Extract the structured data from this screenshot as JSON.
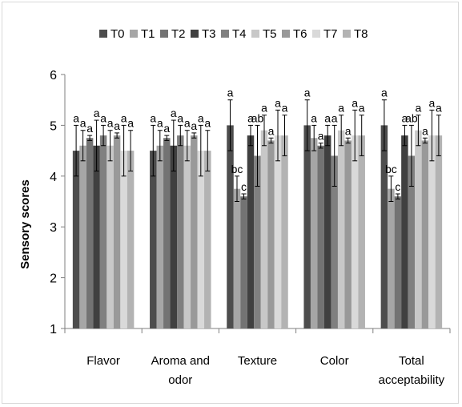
{
  "chart_data": {
    "type": "bar",
    "title": "",
    "xlabel": "",
    "ylabel": "Sensory scores",
    "ylim": [
      1,
      6
    ],
    "yticks": [
      "1",
      "2",
      "3",
      "4",
      "5",
      "6"
    ],
    "grid": false,
    "legend_position": "top",
    "categories": [
      [
        "Flavor"
      ],
      [
        "Aroma and",
        "odor"
      ],
      [
        "Texture"
      ],
      [
        "Color"
      ],
      [
        "Total",
        "acceptability"
      ]
    ],
    "series": [
      {
        "name": "T0",
        "color": "#4d4d4d",
        "values": [
          4.5,
          4.5,
          5.0,
          5.0,
          5.0
        ],
        "errors": [
          0.5,
          0.5,
          0.5,
          0.5,
          0.5
        ],
        "letters": [
          "a",
          "a",
          "a",
          "a",
          "a"
        ]
      },
      {
        "name": "T1",
        "color": "#a6a6a6",
        "values": [
          4.6,
          4.6,
          3.75,
          4.75,
          3.75
        ],
        "errors": [
          0.3,
          0.3,
          0.25,
          0.25,
          0.25
        ],
        "letters": [
          "a",
          "a",
          "bc",
          "a",
          "bc"
        ]
      },
      {
        "name": "T2",
        "color": "#737373",
        "values": [
          4.75,
          4.75,
          3.6,
          4.6,
          3.6
        ],
        "errors": [
          0.05,
          0.05,
          0.05,
          0.05,
          0.05
        ],
        "letters": [
          "a",
          "a",
          "c",
          "a",
          "c"
        ]
      },
      {
        "name": "T3",
        "color": "#404040",
        "values": [
          4.6,
          4.6,
          4.8,
          4.8,
          4.8
        ],
        "errors": [
          0.5,
          0.5,
          0.2,
          0.2,
          0.2
        ],
        "letters": [
          "a",
          "a",
          "a",
          "a",
          "a"
        ]
      },
      {
        "name": "T4",
        "color": "#808080",
        "values": [
          4.8,
          4.8,
          4.4,
          4.4,
          4.4
        ],
        "errors": [
          0.2,
          0.2,
          0.6,
          0.6,
          0.6
        ],
        "letters": [
          "a",
          "a",
          "ab",
          "a",
          "ab"
        ]
      },
      {
        "name": "T5",
        "color": "#c8c8c8",
        "values": [
          4.6,
          4.6,
          4.9,
          4.9,
          4.9
        ],
        "errors": [
          0.3,
          0.3,
          0.3,
          0.3,
          0.3
        ],
        "letters": [
          "a",
          "a",
          "a",
          "a",
          "a"
        ]
      },
      {
        "name": "T6",
        "color": "#999999",
        "values": [
          4.8,
          4.8,
          4.7,
          4.7,
          4.7
        ],
        "errors": [
          0.05,
          0.05,
          0.05,
          0.05,
          0.05
        ],
        "letters": [
          "a",
          "a",
          "a",
          "a",
          "a"
        ]
      },
      {
        "name": "T7",
        "color": "#d9d9d9",
        "values": [
          4.5,
          4.5,
          4.8,
          4.8,
          4.8
        ],
        "errors": [
          0.5,
          0.5,
          0.5,
          0.5,
          0.5
        ],
        "letters": [
          "a",
          "a",
          "a",
          "a",
          "a"
        ]
      },
      {
        "name": "T8",
        "color": "#b3b3b3",
        "values": [
          4.5,
          4.5,
          4.8,
          4.8,
          4.8
        ],
        "errors": [
          0.4,
          0.4,
          0.4,
          0.4,
          0.4
        ],
        "letters": [
          "a",
          "a",
          "a",
          "a",
          "a"
        ]
      }
    ]
  }
}
